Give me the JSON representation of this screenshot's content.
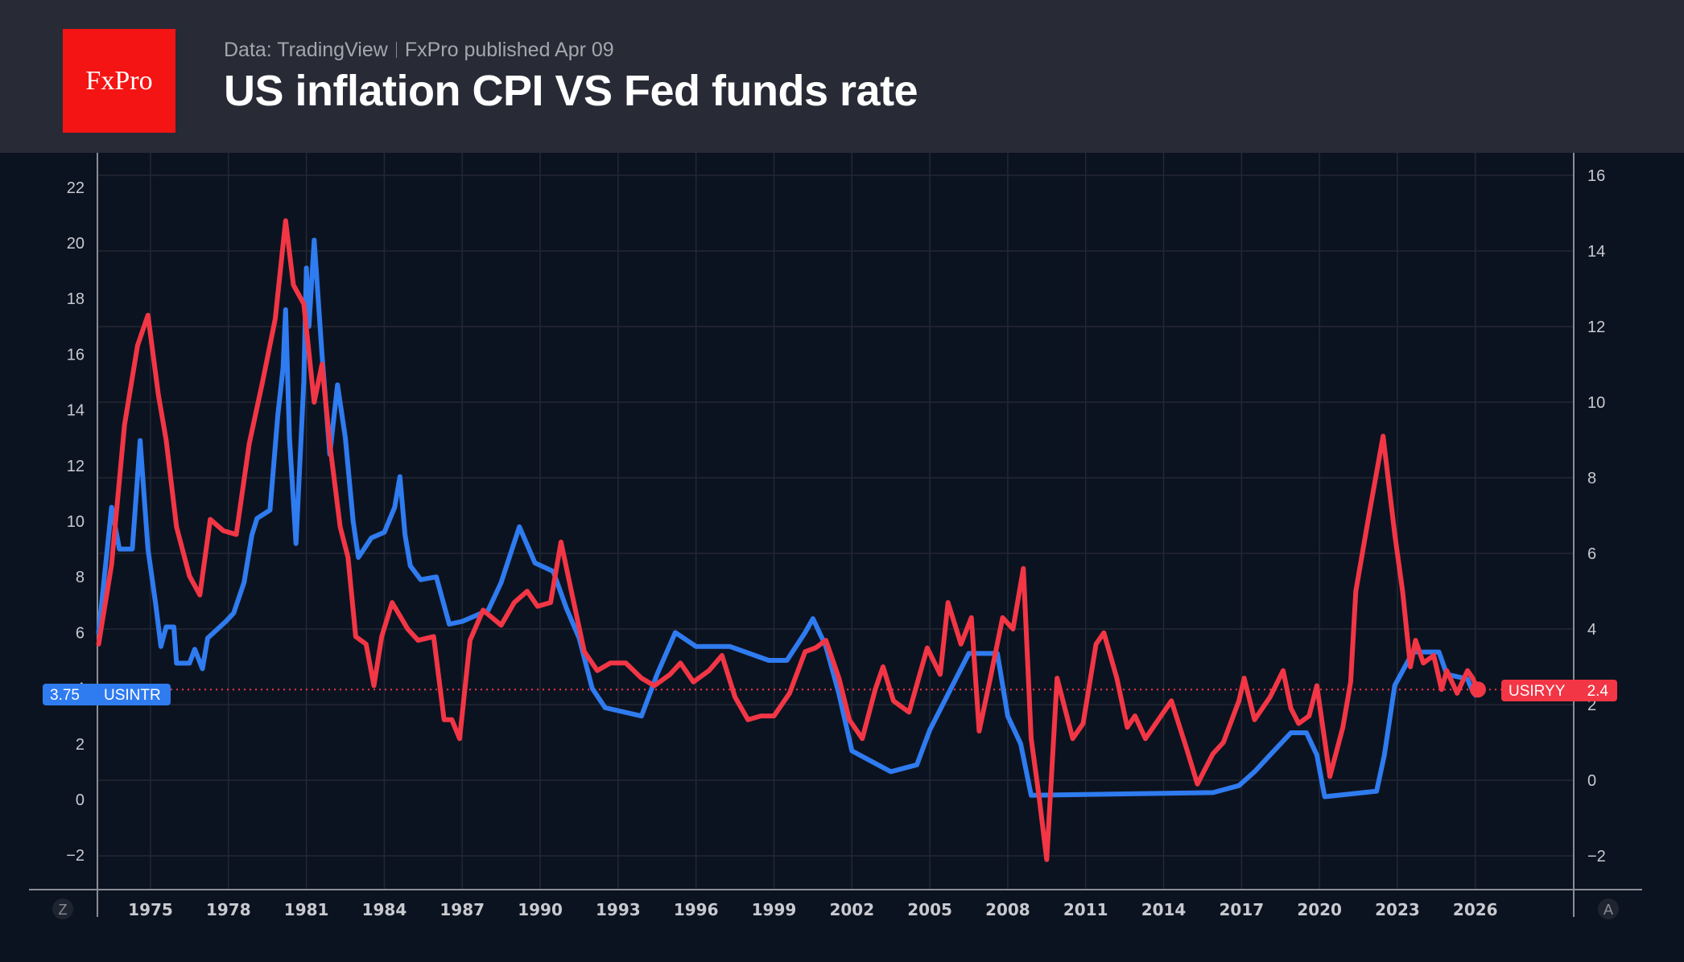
{
  "header": {
    "logo_text": "FxPro",
    "source": "Data: TradingView",
    "published": "FxPro published Apr 09",
    "title": "US inflation CPI VS Fed funds rate"
  },
  "colors": {
    "fed_rate": "#2f7bf0",
    "cpi": "#f23645",
    "background": "#0c1320",
    "header": "#282a36",
    "logo": "#f41414"
  },
  "chart_data": {
    "type": "line",
    "grid": true,
    "x_ticks": [
      "1975",
      "1978",
      "1981",
      "1984",
      "1987",
      "1990",
      "1993",
      "1996",
      "1999",
      "2002",
      "2005",
      "2008",
      "2011",
      "2014",
      "2017",
      "2020",
      "2023",
      "2026"
    ],
    "left_axis": {
      "ticks": [
        "22",
        "20",
        "18",
        "16",
        "14",
        "12",
        "10",
        "8",
        "6",
        "4",
        "2",
        "0",
        "−2"
      ],
      "range": [
        -3.5,
        23
      ]
    },
    "right_axis": {
      "ticks": [
        "16",
        "14",
        "12",
        "10",
        "8",
        "6",
        "4",
        "2",
        "0",
        "−2"
      ],
      "range": [
        -2.8,
        16.5
      ]
    },
    "left_button": "Z",
    "right_button": "A",
    "series": [
      {
        "name": "USINTR",
        "axis": "left",
        "last_value": "3.75",
        "points": [
          [
            1973.0,
            6
          ],
          [
            1973.5,
            10.5
          ],
          [
            1973.8,
            9
          ],
          [
            1974.3,
            9
          ],
          [
            1974.6,
            12.9
          ],
          [
            1974.9,
            9
          ],
          [
            1975.2,
            7
          ],
          [
            1975.4,
            5.5
          ],
          [
            1975.6,
            6.2
          ],
          [
            1975.9,
            6.2
          ],
          [
            1976.0,
            4.9
          ],
          [
            1976.5,
            4.9
          ],
          [
            1976.7,
            5.4
          ],
          [
            1977.0,
            4.7
          ],
          [
            1977.2,
            5.8
          ],
          [
            1977.9,
            6.4
          ],
          [
            1978.2,
            6.7
          ],
          [
            1978.6,
            7.8
          ],
          [
            1978.9,
            9.5
          ],
          [
            1979.1,
            10.1
          ],
          [
            1979.6,
            10.4
          ],
          [
            1979.9,
            13.8
          ],
          [
            1980.1,
            15.5
          ],
          [
            1980.2,
            17.6
          ],
          [
            1980.35,
            13
          ],
          [
            1980.6,
            9.2
          ],
          [
            1980.9,
            15
          ],
          [
            1981.0,
            19.1
          ],
          [
            1981.1,
            17
          ],
          [
            1981.3,
            20.1
          ],
          [
            1981.6,
            16
          ],
          [
            1981.9,
            12.4
          ],
          [
            1982.2,
            14.9
          ],
          [
            1982.5,
            13
          ],
          [
            1982.8,
            10
          ],
          [
            1983.0,
            8.7
          ],
          [
            1983.5,
            9.4
          ],
          [
            1984.0,
            9.6
          ],
          [
            1984.4,
            10.5
          ],
          [
            1984.6,
            11.6
          ],
          [
            1984.8,
            9.5
          ],
          [
            1985.0,
            8.4
          ],
          [
            1985.4,
            7.9
          ],
          [
            1986.0,
            8
          ],
          [
            1986.5,
            6.3
          ],
          [
            1987.0,
            6.4
          ],
          [
            1987.5,
            6.6
          ],
          [
            1988.0,
            6.8
          ],
          [
            1988.5,
            7.8
          ],
          [
            1989.2,
            9.8
          ],
          [
            1989.8,
            8.5
          ],
          [
            1990.5,
            8.2
          ],
          [
            1991.0,
            6.9
          ],
          [
            1991.5,
            5.8
          ],
          [
            1992.0,
            4.0
          ],
          [
            1992.5,
            3.3
          ],
          [
            1993.9,
            3.0
          ],
          [
            1994.5,
            4.5
          ],
          [
            1995.2,
            6.0
          ],
          [
            1996.0,
            5.5
          ],
          [
            1997.3,
            5.5
          ],
          [
            1998.8,
            5.0
          ],
          [
            1999.5,
            5.0
          ],
          [
            2000.2,
            6.0
          ],
          [
            2000.5,
            6.5
          ],
          [
            2001.0,
            5.5
          ],
          [
            2001.5,
            3.8
          ],
          [
            2002.0,
            1.75
          ],
          [
            2003.0,
            1.25
          ],
          [
            2003.5,
            1.0
          ],
          [
            2004.5,
            1.25
          ],
          [
            2005.0,
            2.5
          ],
          [
            2006.5,
            5.25
          ],
          [
            2007.6,
            5.25
          ],
          [
            2008.0,
            3.0
          ],
          [
            2008.5,
            2.0
          ],
          [
            2008.9,
            0.15
          ],
          [
            2015.9,
            0.25
          ],
          [
            2016.9,
            0.5
          ],
          [
            2017.5,
            1.0
          ],
          [
            2018.0,
            1.5
          ],
          [
            2018.9,
            2.4
          ],
          [
            2019.5,
            2.4
          ],
          [
            2019.9,
            1.6
          ],
          [
            2020.2,
            0.1
          ],
          [
            2022.2,
            0.3
          ],
          [
            2022.5,
            1.6
          ],
          [
            2022.9,
            4.1
          ],
          [
            2023.6,
            5.3
          ],
          [
            2024.6,
            5.3
          ],
          [
            2024.9,
            4.5
          ],
          [
            2025.7,
            4.33
          ],
          [
            2025.8,
            4.1
          ],
          [
            2025.9,
            3.9
          ],
          [
            2026.0,
            3.75
          ]
        ]
      },
      {
        "name": "USIRYY",
        "axis": "right",
        "last_value": "2.4",
        "points": [
          [
            1973.0,
            3.6
          ],
          [
            1973.5,
            5.7
          ],
          [
            1974.0,
            9.4
          ],
          [
            1974.5,
            11.5
          ],
          [
            1974.9,
            12.3
          ],
          [
            1975.3,
            10.2
          ],
          [
            1975.6,
            9.0
          ],
          [
            1976.0,
            6.7
          ],
          [
            1976.5,
            5.4
          ],
          [
            1976.9,
            4.9
          ],
          [
            1977.3,
            6.9
          ],
          [
            1977.8,
            6.6
          ],
          [
            1978.3,
            6.5
          ],
          [
            1978.8,
            8.9
          ],
          [
            1979.3,
            10.5
          ],
          [
            1979.8,
            12.2
          ],
          [
            1980.2,
            14.8
          ],
          [
            1980.5,
            13.1
          ],
          [
            1980.9,
            12.6
          ],
          [
            1981.3,
            10.0
          ],
          [
            1981.6,
            11.0
          ],
          [
            1981.9,
            8.9
          ],
          [
            1982.3,
            6.7
          ],
          [
            1982.6,
            5.9
          ],
          [
            1982.9,
            3.8
          ],
          [
            1983.3,
            3.6
          ],
          [
            1983.6,
            2.5
          ],
          [
            1983.9,
            3.8
          ],
          [
            1984.3,
            4.7
          ],
          [
            1984.9,
            4.0
          ],
          [
            1985.3,
            3.7
          ],
          [
            1985.9,
            3.8
          ],
          [
            1986.3,
            1.6
          ],
          [
            1986.6,
            1.6
          ],
          [
            1986.9,
            1.1
          ],
          [
            1987.3,
            3.7
          ],
          [
            1987.8,
            4.5
          ],
          [
            1988.5,
            4.1
          ],
          [
            1989.0,
            4.7
          ],
          [
            1989.5,
            5.0
          ],
          [
            1989.9,
            4.6
          ],
          [
            1990.4,
            4.7
          ],
          [
            1990.8,
            6.3
          ],
          [
            1991.2,
            5.0
          ],
          [
            1991.7,
            3.4
          ],
          [
            1992.2,
            2.9
          ],
          [
            1992.7,
            3.1
          ],
          [
            1993.3,
            3.1
          ],
          [
            1993.9,
            2.7
          ],
          [
            1994.4,
            2.5
          ],
          [
            1995.0,
            2.8
          ],
          [
            1995.4,
            3.1
          ],
          [
            1995.9,
            2.6
          ],
          [
            1996.5,
            2.9
          ],
          [
            1997.0,
            3.3
          ],
          [
            1997.5,
            2.2
          ],
          [
            1998.0,
            1.6
          ],
          [
            1998.5,
            1.7
          ],
          [
            1999.0,
            1.7
          ],
          [
            1999.6,
            2.3
          ],
          [
            2000.2,
            3.4
          ],
          [
            2000.6,
            3.5
          ],
          [
            2001.0,
            3.7
          ],
          [
            2001.5,
            2.7
          ],
          [
            2001.9,
            1.6
          ],
          [
            2002.4,
            1.1
          ],
          [
            2002.9,
            2.4
          ],
          [
            2003.2,
            3.0
          ],
          [
            2003.6,
            2.1
          ],
          [
            2004.2,
            1.8
          ],
          [
            2004.9,
            3.5
          ],
          [
            2005.4,
            2.8
          ],
          [
            2005.7,
            4.7
          ],
          [
            2006.2,
            3.6
          ],
          [
            2006.6,
            4.3
          ],
          [
            2006.9,
            1.3
          ],
          [
            2007.3,
            2.6
          ],
          [
            2007.8,
            4.3
          ],
          [
            2008.2,
            4.0
          ],
          [
            2008.6,
            5.6
          ],
          [
            2008.9,
            1.1
          ],
          [
            2009.2,
            -0.4
          ],
          [
            2009.5,
            -2.1
          ],
          [
            2009.9,
            2.7
          ],
          [
            2010.5,
            1.1
          ],
          [
            2010.9,
            1.5
          ],
          [
            2011.4,
            3.6
          ],
          [
            2011.7,
            3.9
          ],
          [
            2012.2,
            2.7
          ],
          [
            2012.6,
            1.4
          ],
          [
            2012.9,
            1.7
          ],
          [
            2013.3,
            1.1
          ],
          [
            2013.7,
            1.5
          ],
          [
            2014.3,
            2.1
          ],
          [
            2014.9,
            0.8
          ],
          [
            2015.3,
            -0.1
          ],
          [
            2015.9,
            0.7
          ],
          [
            2016.3,
            1.0
          ],
          [
            2016.9,
            2.1
          ],
          [
            2017.1,
            2.7
          ],
          [
            2017.5,
            1.6
          ],
          [
            2018.1,
            2.2
          ],
          [
            2018.6,
            2.9
          ],
          [
            2018.9,
            1.9
          ],
          [
            2019.2,
            1.5
          ],
          [
            2019.6,
            1.7
          ],
          [
            2019.9,
            2.5
          ],
          [
            2020.4,
            0.1
          ],
          [
            2020.9,
            1.4
          ],
          [
            2021.2,
            2.6
          ],
          [
            2021.4,
            5.0
          ],
          [
            2021.9,
            7.0
          ],
          [
            2022.45,
            9.1
          ],
          [
            2022.9,
            6.5
          ],
          [
            2023.2,
            5.0
          ],
          [
            2023.5,
            3.0
          ],
          [
            2023.7,
            3.7
          ],
          [
            2024.0,
            3.1
          ],
          [
            2024.4,
            3.3
          ],
          [
            2024.7,
            2.4
          ],
          [
            2024.9,
            2.9
          ],
          [
            2025.3,
            2.3
          ],
          [
            2025.7,
            2.9
          ],
          [
            2025.9,
            2.7
          ],
          [
            2026.1,
            2.4
          ]
        ]
      }
    ]
  }
}
